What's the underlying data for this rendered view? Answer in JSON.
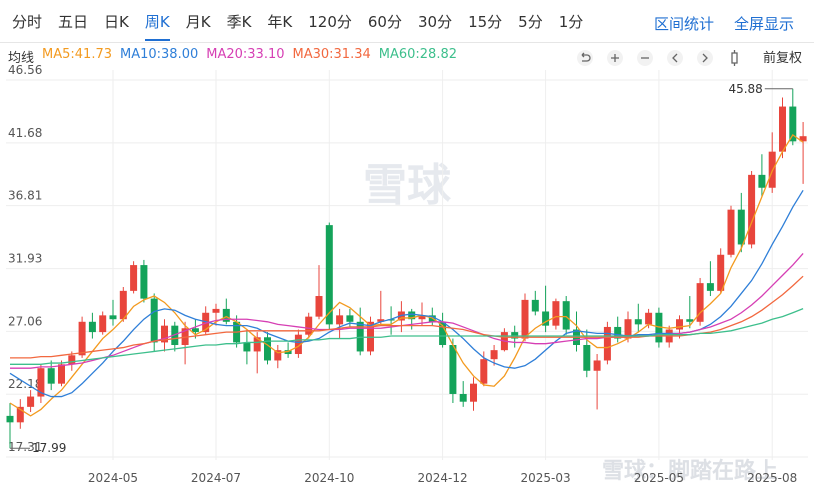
{
  "toolbar": {
    "tabs": [
      "分时",
      "五日",
      "日K",
      "周K",
      "月K",
      "季K",
      "年K",
      "120分",
      "60分",
      "30分",
      "15分",
      "5分",
      "1分"
    ],
    "selected_tab": 3,
    "right": [
      "区间统计",
      "全屏显示"
    ],
    "ma_label": "均线",
    "adjust": "前复权"
  },
  "watermark": "雪球",
  "footer_watermark": "雪球：脚踏在路上",
  "chart_data": {
    "type": "candlestick",
    "categories": [
      null,
      null,
      null,
      null,
      null,
      null,
      null,
      null,
      null,
      null,
      "2024-05",
      null,
      null,
      null,
      null,
      null,
      null,
      null,
      null,
      null,
      "2024-07",
      null,
      null,
      null,
      null,
      null,
      null,
      null,
      null,
      null,
      null,
      "2024-10",
      null,
      null,
      null,
      null,
      null,
      null,
      null,
      null,
      null,
      null,
      "2024-12",
      null,
      null,
      null,
      null,
      null,
      null,
      null,
      null,
      null,
      "2025-03",
      null,
      null,
      null,
      null,
      null,
      null,
      null,
      null,
      null,
      null,
      "2025-05",
      null,
      null,
      null,
      null,
      null,
      null,
      null,
      null,
      null,
      null,
      "2025-08",
      null,
      null,
      null
    ],
    "open": [
      20.5,
      20,
      21.2,
      22,
      24.2,
      23,
      24.5,
      25.2,
      27.8,
      27,
      28.3,
      28,
      30.2,
      32.2,
      29.6,
      26.2,
      27.5,
      26,
      27.3,
      27,
      28.5,
      28.8,
      27.8,
      26.2,
      25.5,
      26.6,
      24.8,
      25.6,
      25.3,
      26.8,
      28.2,
      35.3,
      27.6,
      28.3,
      27.8,
      25.5,
      27.8,
      28,
      27.9,
      28.6,
      28,
      28.3,
      27.8,
      26,
      22.2,
      21.6,
      23,
      24.9,
      25.6,
      27,
      26.5,
      29.5,
      28.6,
      27.5,
      29.4,
      27.2,
      26,
      24,
      24.8,
      27.4,
      26.5,
      28,
      27.6,
      28.5,
      26.2,
      27.2,
      28,
      27.8,
      30.8,
      30.2,
      33,
      36.5,
      33.8,
      39.2,
      38.2,
      41,
      44.5,
      41.8
    ],
    "high": [
      21.5,
      21.8,
      22.5,
      24.5,
      24.8,
      24.8,
      25.5,
      28.2,
      28.5,
      28.6,
      29.5,
      30.5,
      32.5,
      32.6,
      30,
      28,
      27.8,
      27.8,
      28,
      29,
      29.2,
      29.6,
      28.3,
      27.2,
      27,
      27,
      26,
      26.2,
      27.2,
      28.5,
      32.2,
      35.5,
      28.8,
      28.8,
      28.9,
      28.2,
      30.2,
      29,
      29.4,
      28.8,
      29.3,
      28.9,
      28.5,
      26.5,
      23.2,
      23.5,
      25.5,
      26,
      27.3,
      27.5,
      30,
      30.2,
      30.6,
      29.6,
      29.8,
      28.6,
      27.2,
      25.3,
      27.8,
      28.2,
      28.6,
      29.2,
      28.8,
      28.9,
      27.5,
      28.3,
      29.8,
      31.2,
      32.5,
      33.5,
      36.8,
      37.8,
      39.5,
      40.8,
      42.5,
      45.2,
      45.88,
      43.3
    ],
    "low": [
      17.99,
      19.5,
      20.8,
      21.5,
      22.5,
      22.8,
      24,
      25,
      26.5,
      26.8,
      27.5,
      27.8,
      30,
      29.3,
      25.5,
      25.5,
      25.5,
      24.5,
      26.5,
      26.8,
      27.5,
      27.6,
      25.8,
      24.5,
      23.8,
      24.5,
      24.2,
      25,
      25,
      26.5,
      28,
      27.2,
      26.5,
      27.4,
      25.2,
      25.2,
      27.5,
      26.8,
      27,
      27.2,
      27.5,
      27.5,
      25.8,
      21.5,
      21.2,
      20.9,
      22.8,
      24.4,
      25.5,
      25.8,
      26.3,
      28.3,
      27,
      27.2,
      26.8,
      25.5,
      23.5,
      21,
      24.5,
      26.2,
      26.2,
      27,
      27.3,
      25.8,
      25.8,
      26.5,
      27.3,
      27.5,
      29.8,
      30,
      32.8,
      33.2,
      33.5,
      37.5,
      37.8,
      40.5,
      41.5,
      38.5
    ],
    "close": [
      20,
      21.2,
      22,
      24.2,
      23,
      24.5,
      25.2,
      27.8,
      27,
      28.3,
      28,
      30.2,
      32.2,
      29.6,
      26.2,
      27.5,
      26,
      27.3,
      27,
      28.5,
      28.8,
      27.8,
      26.2,
      25.5,
      26.6,
      24.8,
      25.6,
      25.3,
      26.8,
      28.2,
      29.8,
      27.6,
      28.3,
      27.8,
      25.5,
      27.8,
      28,
      27.9,
      28.6,
      28,
      28.3,
      27.8,
      26,
      22.2,
      21.6,
      23,
      24.9,
      25.6,
      27,
      26.5,
      29.5,
      28.6,
      27.5,
      29.4,
      27.2,
      26,
      24,
      24.8,
      27.4,
      26.5,
      28,
      27.6,
      28.5,
      26.2,
      27.2,
      28,
      27.8,
      30.8,
      30.2,
      33,
      36.5,
      33.8,
      39.2,
      38.2,
      41,
      44.5,
      41.8,
      42.2
    ],
    "up_color": "#e8453c",
    "down_color": "#14a35a",
    "series": [
      {
        "name": "MA5:41.73",
        "color": "#f39a1f",
        "values": [
          21.5,
          21,
          20.5,
          21,
          21.8,
          22.5,
          23.5,
          24.5,
          25.5,
          26.5,
          27.2,
          28,
          29,
          29.5,
          29.8,
          29.3,
          28.5,
          27.5,
          26.8,
          27.2,
          27.8,
          28.2,
          27.8,
          27.2,
          26.5,
          26,
          25.4,
          25.5,
          25.9,
          26.6,
          27.6,
          28.5,
          29.3,
          28.9,
          28.2,
          27.5,
          27.6,
          27.6,
          28.1,
          28.1,
          28.3,
          28.1,
          27.5,
          26,
          24.6,
          23.6,
          22.9,
          22.8,
          23.6,
          25,
          26.6,
          27.3,
          27.8,
          28.2,
          28.2,
          27.5,
          26.4,
          25.8,
          25.8,
          26.1,
          26.5,
          27,
          27.6,
          27.4,
          27.3,
          27.4,
          27.5,
          28.5,
          29.2,
          30,
          32,
          33.5,
          35.5,
          37.5,
          39.5,
          41,
          42.3,
          41.73
        ]
      },
      {
        "name": "MA10:38.00",
        "color": "#2f7fd8",
        "values": [
          23.8,
          23.3,
          22.8,
          22.3,
          22,
          22,
          22.3,
          23,
          23.8,
          24.6,
          25.5,
          26.3,
          27.2,
          28,
          28.6,
          28.8,
          28.7,
          28.3,
          28,
          27.8,
          27.6,
          27.5,
          27.5,
          27.5,
          27.3,
          26.9,
          26.6,
          26.3,
          26.2,
          26.3,
          26.5,
          27,
          27.4,
          27.7,
          27.6,
          27.5,
          27.8,
          28,
          28.3,
          28.4,
          28.3,
          28.2,
          27.8,
          27.2,
          26.5,
          25.7,
          25,
          24.6,
          24.3,
          24.2,
          24.4,
          24.9,
          25.6,
          26.3,
          26.9,
          27.1,
          27,
          26.9,
          26.9,
          26.8,
          26.7,
          26.8,
          26.8,
          26.9,
          26.9,
          26.9,
          27,
          27.2,
          27.6,
          28.2,
          29,
          30,
          31,
          32.3,
          33.8,
          35.2,
          36.7,
          38.0
        ]
      },
      {
        "name": "MA20:33.10",
        "color": "#d63fb4",
        "values": [
          24.2,
          24.2,
          24.2,
          24.3,
          24.3,
          24.4,
          24.5,
          24.6,
          24.8,
          25,
          25.2,
          25.5,
          25.8,
          26.1,
          26.3,
          26.5,
          26.8,
          27.1,
          27.4,
          27.7,
          27.9,
          28,
          28,
          28,
          27.9,
          27.8,
          27.6,
          27.5,
          27.4,
          27.3,
          27.2,
          27.2,
          27.2,
          27.3,
          27.3,
          27.3,
          27.3,
          27.4,
          27.5,
          27.6,
          27.7,
          27.8,
          27.8,
          27.7,
          27.4,
          27.1,
          26.8,
          26.5,
          26.3,
          26.2,
          26.2,
          26.1,
          26.1,
          26.2,
          26.3,
          26.4,
          26.5,
          26.5,
          26.6,
          26.6,
          26.6,
          26.7,
          26.7,
          26.8,
          26.8,
          26.9,
          27,
          27.2,
          27.4,
          27.7,
          28,
          28.5,
          29.1,
          29.8,
          30.6,
          31.4,
          32.2,
          33.1
        ]
      },
      {
        "name": "MA30:31.34",
        "color": "#f2683f",
        "values": [
          25,
          25,
          25,
          25.1,
          25.1,
          25.2,
          25.3,
          25.4,
          25.5,
          25.6,
          25.7,
          25.8,
          26,
          26.1,
          26.3,
          26.4,
          26.5,
          26.6,
          26.7,
          26.8,
          26.9,
          27,
          27,
          27.1,
          27.1,
          27.1,
          27.1,
          27.1,
          27.1,
          27.1,
          27.1,
          27.2,
          27.3,
          27.4,
          27.4,
          27.4,
          27.5,
          27.5,
          27.5,
          27.5,
          27.5,
          27.5,
          27.4,
          27.3,
          27.2,
          27,
          26.8,
          26.7,
          26.6,
          26.6,
          26.6,
          26.6,
          26.6,
          26.6,
          26.6,
          26.6,
          26.6,
          26.6,
          26.6,
          26.6,
          26.6,
          26.6,
          26.7,
          26.7,
          26.7,
          26.7,
          26.8,
          26.9,
          27,
          27.2,
          27.5,
          27.8,
          28.2,
          28.7,
          29.3,
          29.9,
          30.6,
          31.34
        ]
      },
      {
        "name": "MA60:28.82",
        "color": "#3dbf8c",
        "values": [
          24.5,
          24.5,
          24.5,
          24.5,
          24.6,
          24.6,
          24.7,
          24.8,
          24.9,
          25,
          25.1,
          25.2,
          25.3,
          25.4,
          25.5,
          25.6,
          25.7,
          25.8,
          25.9,
          26,
          26,
          26.1,
          26.1,
          26.2,
          26.2,
          26.3,
          26.3,
          26.3,
          26.4,
          26.4,
          26.4,
          26.5,
          26.5,
          26.5,
          26.6,
          26.6,
          26.6,
          26.7,
          26.7,
          26.7,
          26.7,
          26.7,
          26.7,
          26.7,
          26.7,
          26.7,
          26.7,
          26.7,
          26.7,
          26.7,
          26.7,
          26.7,
          26.7,
          26.7,
          26.7,
          26.7,
          26.7,
          26.7,
          26.7,
          26.7,
          26.7,
          26.7,
          26.7,
          26.8,
          26.8,
          26.8,
          26.8,
          26.9,
          26.9,
          27,
          27.1,
          27.3,
          27.5,
          27.7,
          28,
          28.2,
          28.5,
          28.82
        ]
      }
    ],
    "ylim": [
      17.31,
      46.56
    ],
    "yticks": [
      46.56,
      41.68,
      36.81,
      31.93,
      27.06,
      22.18,
      17.31
    ],
    "grid": true
  }
}
